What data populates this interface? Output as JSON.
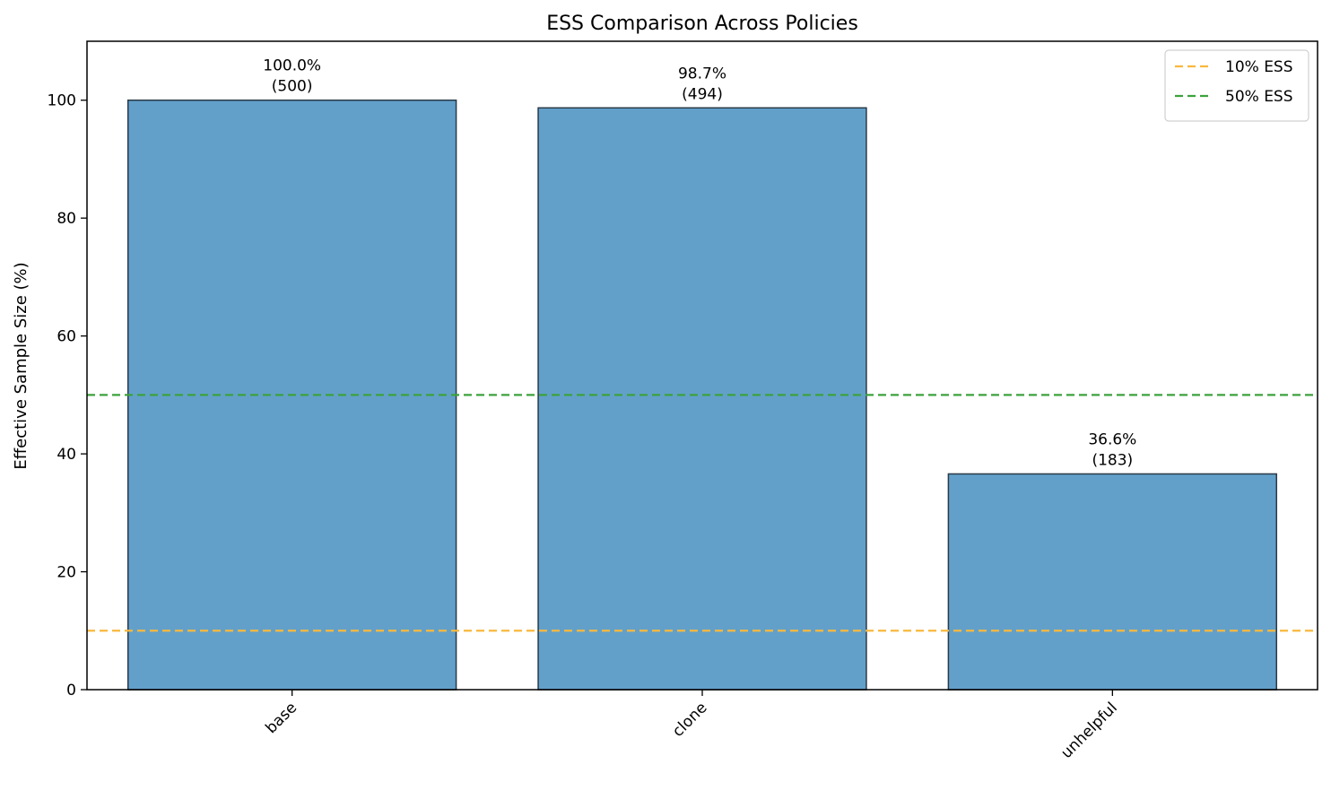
{
  "chart_data": {
    "type": "bar",
    "title": "ESS Comparison Across Policies",
    "xlabel": "",
    "ylabel": "Effective Sample Size (%)",
    "categories": [
      "base",
      "clone",
      "unhelpful"
    ],
    "values": [
      100.0,
      98.7,
      36.6
    ],
    "bar_labels": [
      "100.0%\n(500)",
      "98.7%\n(494)",
      "36.6%\n(183)"
    ],
    "ylim": [
      0,
      110
    ],
    "yticks": [
      0,
      20,
      40,
      60,
      80,
      100
    ],
    "bar_color": "#62A0CA",
    "bar_edge_color": "#2B3A48",
    "reference_lines": [
      {
        "name": "10% ESS",
        "value": 10,
        "color": "#F9B83C",
        "style": "dashed"
      },
      {
        "name": "50% ESS",
        "value": 50,
        "color": "#3CA23C",
        "style": "dashed"
      }
    ],
    "legend": {
      "position": "top-right"
    },
    "grid": false
  }
}
